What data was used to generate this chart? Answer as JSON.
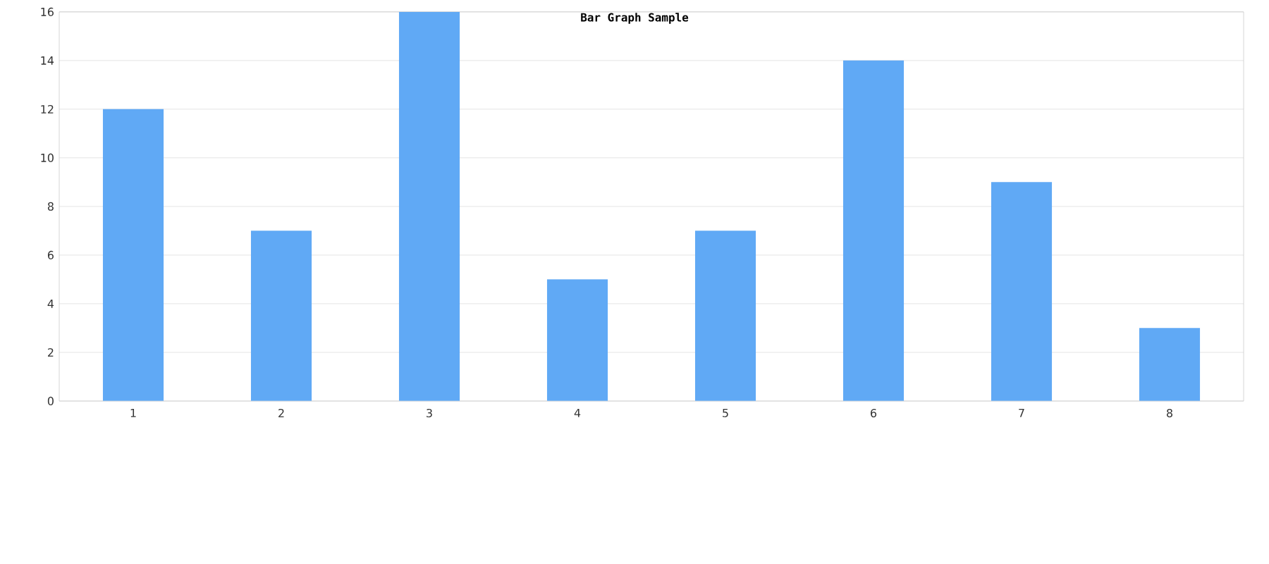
{
  "chart_data": {
    "type": "bar",
    "title": "Bar Graph Sample",
    "categories": [
      "1",
      "2",
      "3",
      "4",
      "5",
      "6",
      "7",
      "8"
    ],
    "values": [
      12,
      7,
      16,
      5,
      7,
      14,
      9,
      3
    ],
    "color": "#60a9f5",
    "ylim": [
      0,
      16
    ],
    "yticks": [
      0,
      2,
      4,
      6,
      8,
      10,
      12,
      14,
      16
    ],
    "grid": "y"
  }
}
